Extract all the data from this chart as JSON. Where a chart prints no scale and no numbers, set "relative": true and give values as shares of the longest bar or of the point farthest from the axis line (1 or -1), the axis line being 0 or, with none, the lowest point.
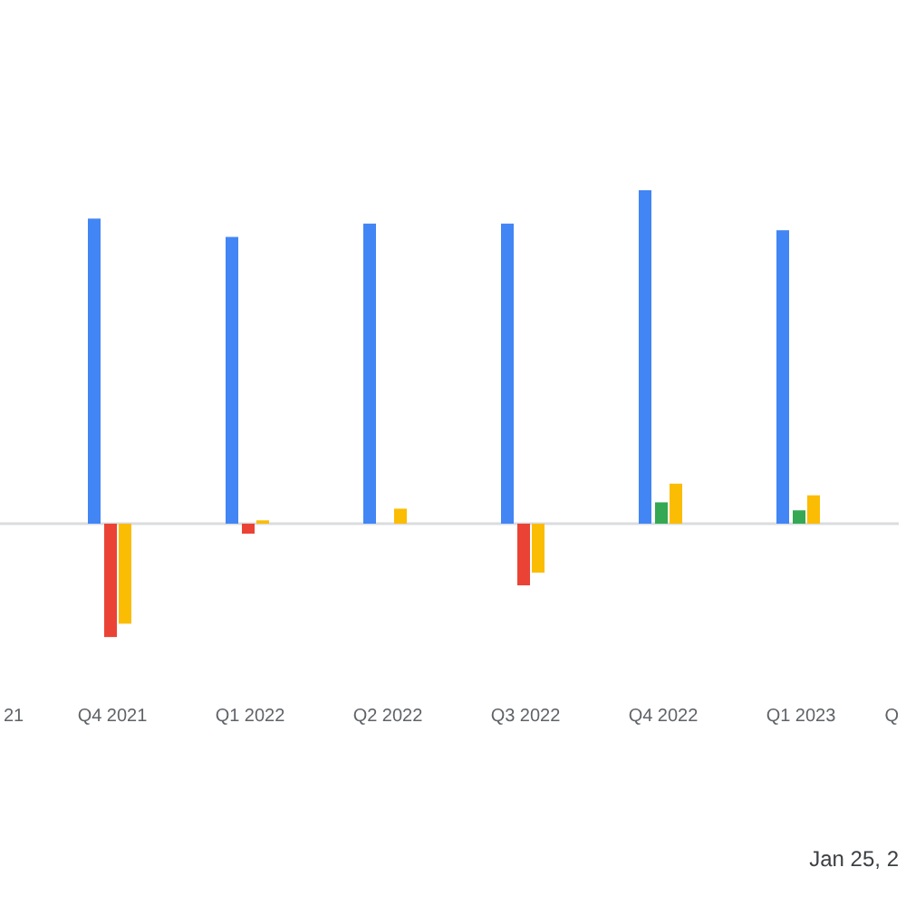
{
  "chart_data": {
    "type": "bar",
    "relative": true,
    "categories": [
      "21",
      "Q4 2021",
      "Q1 2022",
      "Q2 2022",
      "Q3 2022",
      "Q4 2022",
      "Q1 2023",
      "Q"
    ],
    "series": [
      {
        "color": "#4285f4",
        "values": [
          null,
          0.915,
          0.86,
          0.9,
          0.9,
          1,
          0.88,
          null
        ]
      },
      {
        "colors": [
          null,
          "#ea4335",
          "#ea4335",
          null,
          "#ea4335",
          "#34a853",
          "#34a853",
          null
        ],
        "values": [
          null,
          -0.34,
          -0.03,
          null,
          -0.185,
          0.064,
          0.04,
          null
        ]
      },
      {
        "color": "#fbbc04",
        "values": [
          null,
          -0.3,
          0.01,
          0.045,
          -0.147,
          0.12,
          0.085,
          null
        ]
      }
    ],
    "annotations": [
      "Jan 25, 2"
    ]
  }
}
